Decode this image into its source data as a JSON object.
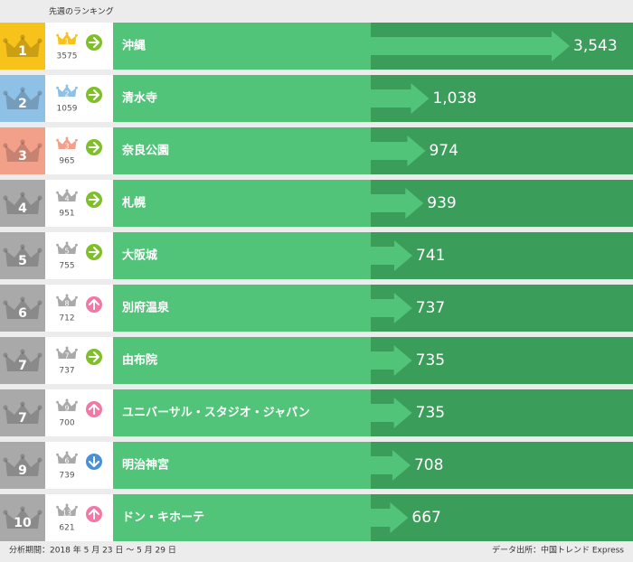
{
  "header": "先週のランキング",
  "rows": [
    {
      "rank": 1,
      "prev_rank": 1,
      "prev_value": 3575,
      "trend": "same",
      "name": "沖縄",
      "value": 3543,
      "value_label": "3,543"
    },
    {
      "rank": 2,
      "prev_rank": 2,
      "prev_value": 1059,
      "trend": "same",
      "name": "清水寺",
      "value": 1038,
      "value_label": "1,038"
    },
    {
      "rank": 3,
      "prev_rank": 3,
      "prev_value": 965,
      "trend": "same",
      "name": "奈良公園",
      "value": 974
    },
    {
      "rank": 4,
      "prev_rank": 4,
      "prev_value": 951,
      "trend": "same",
      "name": "札幌",
      "value": 939
    },
    {
      "rank": 5,
      "prev_rank": 5,
      "prev_value": 755,
      "trend": "same",
      "name": "大阪城",
      "value": 741
    },
    {
      "rank": 6,
      "prev_rank": 8,
      "prev_value": 712,
      "trend": "up",
      "name": "別府温泉",
      "value": 737
    },
    {
      "rank": 7,
      "prev_rank": 7,
      "prev_value": 737,
      "trend": "same",
      "name": "由布院",
      "value": 735
    },
    {
      "rank": 7,
      "prev_rank": 9,
      "prev_value": 700,
      "trend": "up",
      "name": "ユニバーサル・スタジオ・ジャパン",
      "value": 735
    },
    {
      "rank": 9,
      "prev_rank": 6,
      "prev_value": 739,
      "trend": "down",
      "name": "明治神宮",
      "value": 708
    },
    {
      "rank": 10,
      "prev_rank": 13,
      "prev_value": 621,
      "trend": "up",
      "name": "ドン・キホーテ",
      "value": 667
    }
  ],
  "footer": {
    "period": "分析期間：2018 年 5 月 23 日 ～ 5 月 29 日",
    "source": "データ出所：中国トレンド Express"
  }
}
